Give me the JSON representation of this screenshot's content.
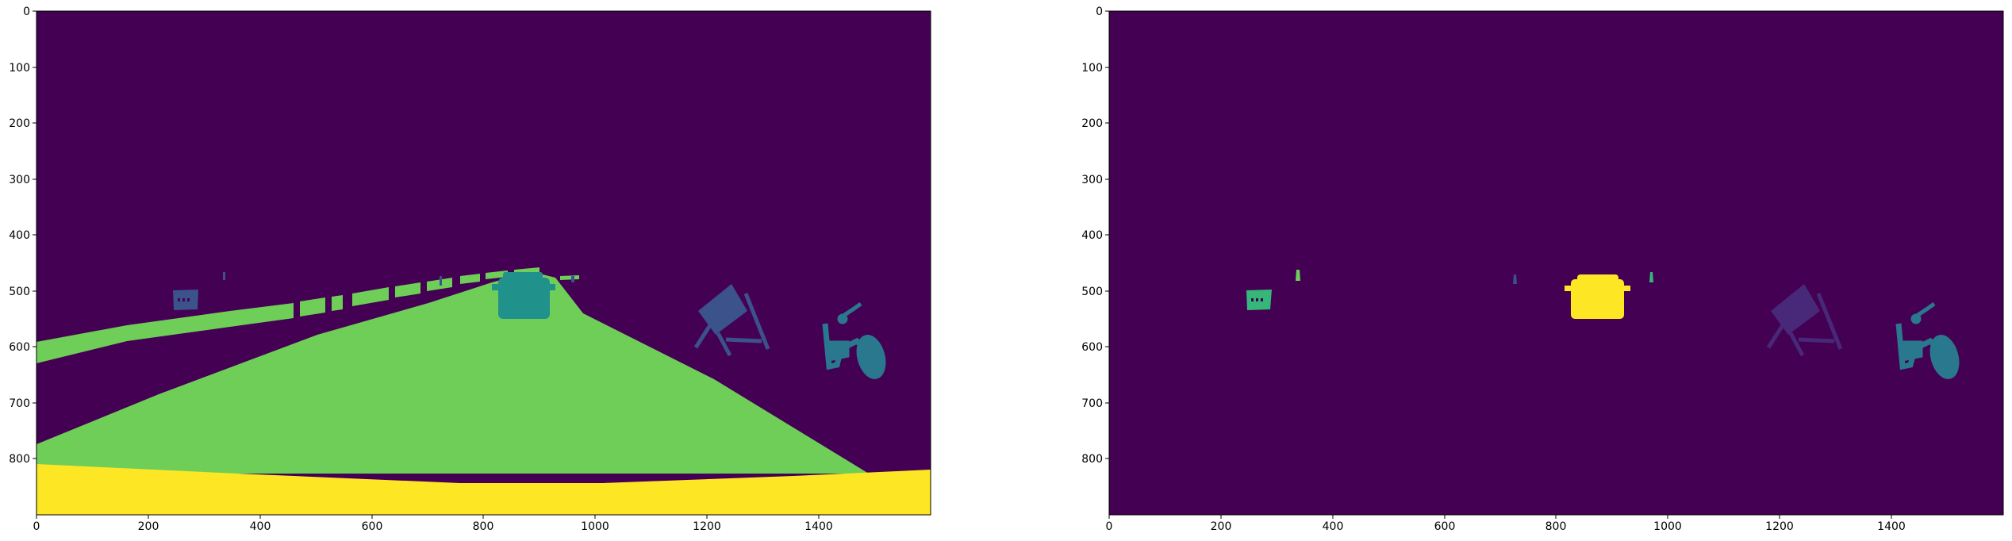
{
  "colors": {
    "background": "#440154",
    "c1": "#3b528b",
    "c2": "#21918c",
    "c3": "#2a788e",
    "c4": "#6ece58",
    "c5": "#fde725",
    "c6": "#482878",
    "c7": "#35b779"
  },
  "panels": [
    {
      "name": "left-mask",
      "xticks": [
        "0",
        "200",
        "400",
        "600",
        "800",
        "1000",
        "1200",
        "1400"
      ],
      "yticks": [
        "0",
        "100",
        "200",
        "300",
        "400",
        "500",
        "600",
        "700",
        "800"
      ]
    },
    {
      "name": "right-mask",
      "xticks": [
        "0",
        "200",
        "400",
        "600",
        "800",
        "1000",
        "1200",
        "1400"
      ],
      "yticks": [
        "0",
        "100",
        "200",
        "300",
        "400",
        "500",
        "600",
        "700",
        "800"
      ]
    }
  ]
}
